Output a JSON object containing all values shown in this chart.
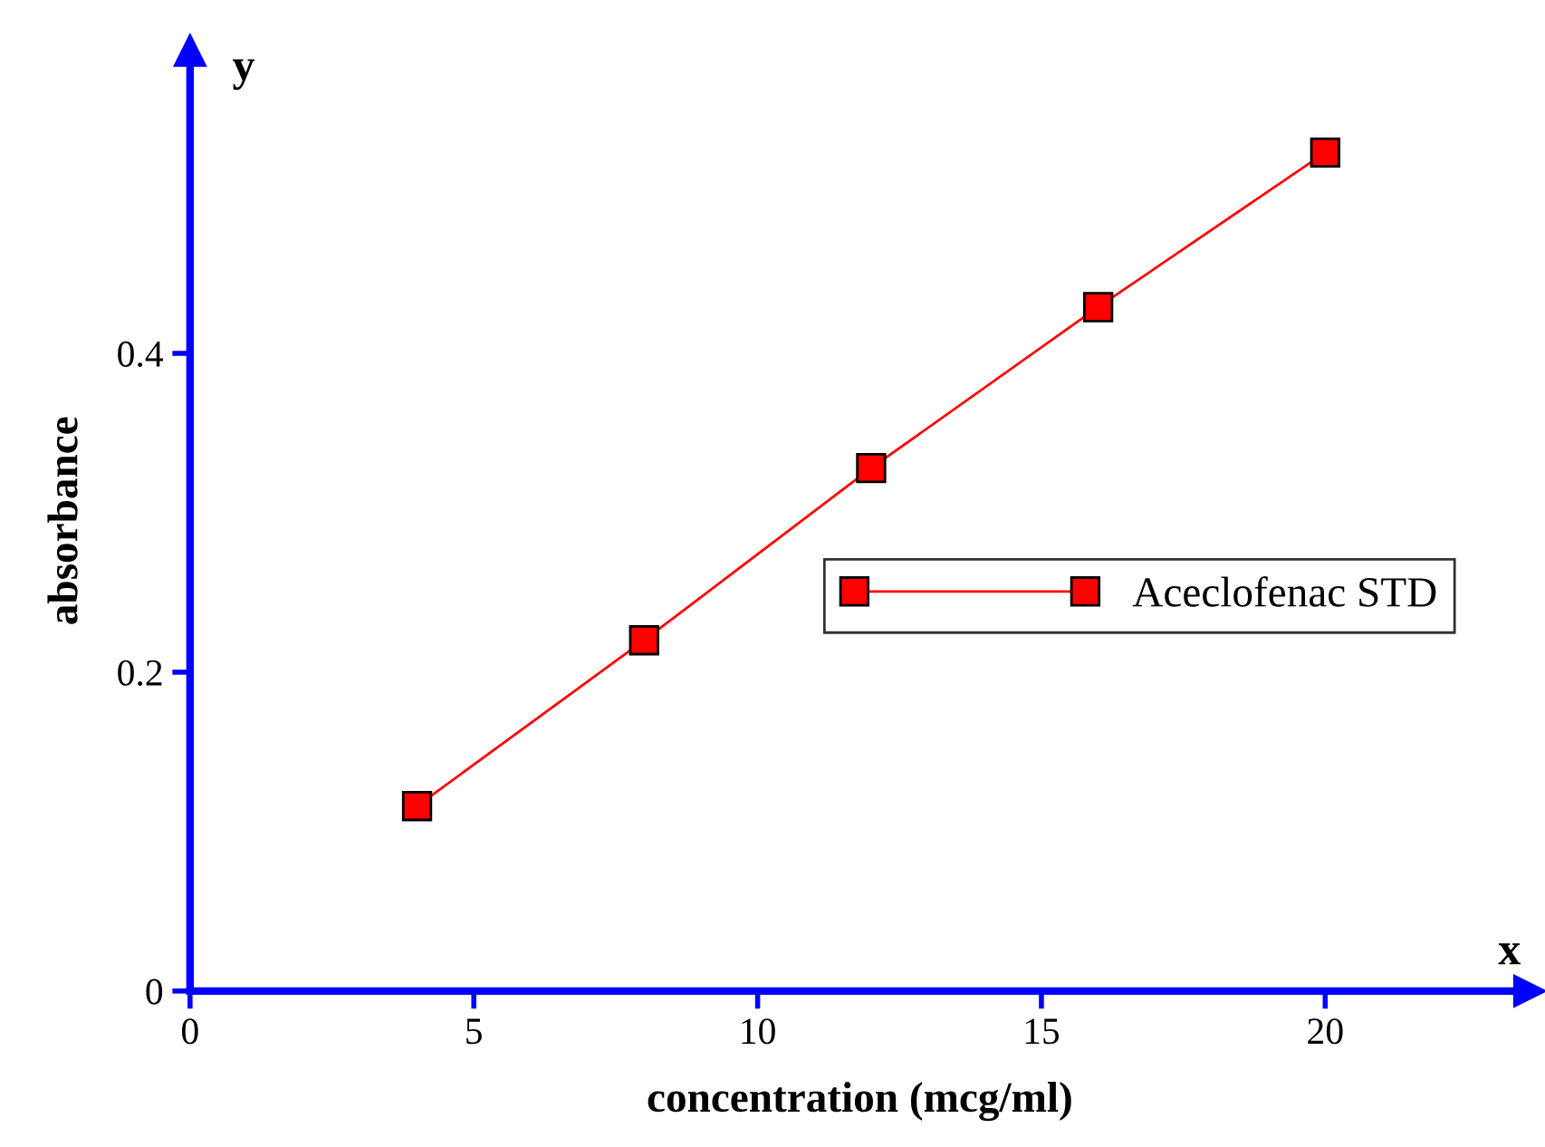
{
  "chart_data": {
    "type": "line",
    "xlabel": "concentration (mcg/ml)",
    "ylabel": "absorbance",
    "annotations": [
      "y",
      "x"
    ],
    "x": [
      4,
      8,
      12,
      16,
      20
    ],
    "series": [
      {
        "name": "Aceclofenac STD",
        "color": "#ff0000",
        "values": [
          0.116,
          0.22,
          0.328,
          0.429,
          0.526
        ]
      }
    ],
    "xlim": [
      0,
      23.6
    ],
    "ylim": [
      0,
      0.59
    ],
    "xticks": [
      0,
      5,
      10,
      15,
      20
    ],
    "yticks": [
      0,
      0.2,
      0.4
    ],
    "marker": "square",
    "line_style": "solid",
    "legend": "right",
    "grid": false
  }
}
